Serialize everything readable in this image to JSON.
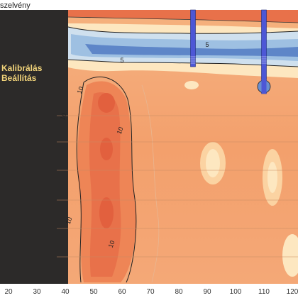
{
  "title_fragment": "szelvény",
  "side_panel": {
    "line1": "Kalibrálás",
    "line2": "Beállítás"
  },
  "chart_data": {
    "type": "heatmap",
    "title": "szelvény",
    "x_ticks": [
      20,
      30,
      40,
      50,
      60,
      70,
      80,
      90,
      100,
      110,
      120
    ],
    "xlim": [
      17,
      122
    ],
    "calibration_band_x": [
      17,
      37
    ],
    "contour_labels": [
      {
        "value": "5",
        "x": 90,
        "level": "upper"
      },
      {
        "value": "5",
        "x": 60,
        "level": "upper"
      },
      {
        "value": "10",
        "x": 46,
        "level": "mid"
      },
      {
        "value": "10",
        "x": 40,
        "level": "mid"
      },
      {
        "value": "10",
        "x": 60,
        "level": "mid"
      },
      {
        "value": "10",
        "x": 42,
        "level": "low"
      },
      {
        "value": "10",
        "x": 57,
        "level": "low"
      }
    ],
    "markers": [
      {
        "x": 85
      },
      {
        "x": 110
      }
    ],
    "colors": {
      "dark_band": "#2c2a29",
      "deep": "#4e79c2",
      "blue": "#8fb5de",
      "light_blue": "#cfe0ee",
      "cream": "#fff2c8",
      "peach": "#fbc78f",
      "orange": "#f4a06b",
      "red_orange": "#ec7a4c",
      "marker": "#4d57d6"
    }
  }
}
